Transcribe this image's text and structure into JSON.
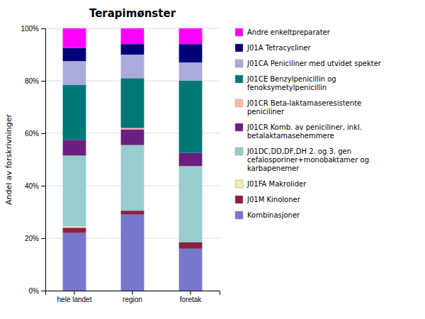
{
  "chart_data": {
    "type": "bar",
    "stacked": true,
    "title": "Terapimønster",
    "ylabel": "Andel av forskrivninger",
    "categories": [
      "hele landet",
      "region",
      "foretak"
    ],
    "series": [
      {
        "name": "Kombinasjoner",
        "color": "#7777cc",
        "values": [
          22.0,
          29.0,
          16.0
        ]
      },
      {
        "name": "J01M Kinoloner",
        "color": "#882244",
        "values": [
          2.0,
          1.5,
          2.5
        ]
      },
      {
        "name": "J01FA Makrolider",
        "color": "#eeeeaa",
        "values": [
          0.5,
          0.0,
          0.0
        ]
      },
      {
        "name": "J01DC,DD,DF,DH 2. og 3. gen\ncefalosporiner+monobaktamer og\nkarbapenemer",
        "color": "#99cccc",
        "values": [
          27.0,
          25.0,
          29.0
        ]
      },
      {
        "name": "J01CR Komb. av peniciliner, inkl.\nbetalaktamasehemmere",
        "color": "#6b2080",
        "values": [
          6.0,
          6.0,
          5.0
        ]
      },
      {
        "name": "J01CR Beta-laktamaseresistente\npeniciliner",
        "color": "#ffbbaa",
        "values": [
          0.0,
          0.5,
          0.0
        ]
      },
      {
        "name": "J01CE Benzylpenicillin og\nfenoksymetylpenicillin",
        "color": "#007777",
        "values": [
          21.0,
          19.0,
          27.5
        ]
      },
      {
        "name": "J01CA Peniciliner med utvidet spekter",
        "color": "#aaaadd",
        "values": [
          9.0,
          9.0,
          7.0
        ]
      },
      {
        "name": "J01A Tetracycliner",
        "color": "#000077",
        "values": [
          5.0,
          4.0,
          7.0
        ]
      },
      {
        "name": "Andre enkeltpreparater",
        "color": "#ff00ff",
        "values": [
          7.5,
          6.0,
          6.0
        ]
      }
    ],
    "ylim": [
      0,
      100
    ],
    "yticks": [
      {
        "value": 0,
        "label": "0%"
      },
      {
        "value": 20,
        "label": "20%"
      },
      {
        "value": 40,
        "label": "40%"
      },
      {
        "value": 60,
        "label": "60%"
      },
      {
        "value": 80,
        "label": "80%"
      },
      {
        "value": 100,
        "label": "100%"
      }
    ],
    "grid": true,
    "legend": "right"
  }
}
